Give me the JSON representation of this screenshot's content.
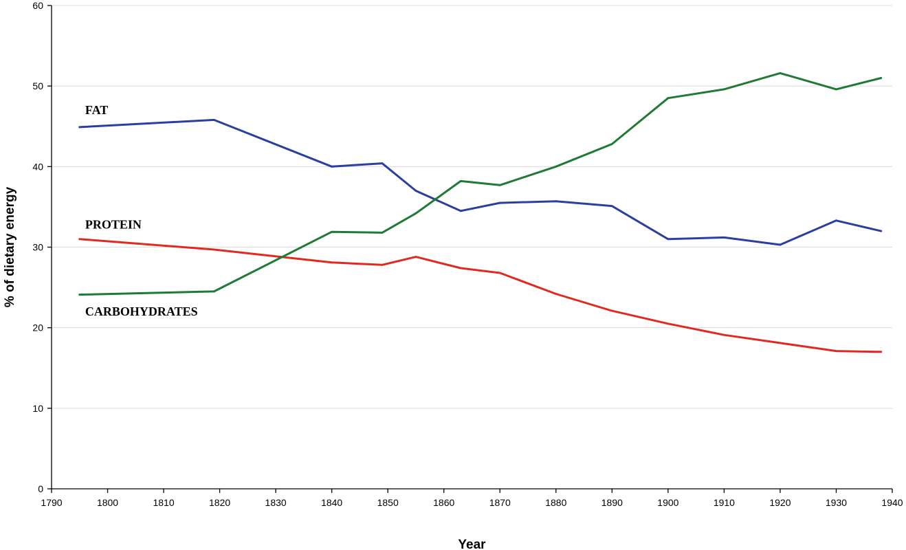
{
  "chart_data": {
    "type": "line",
    "title": "",
    "xlabel": "Year",
    "ylabel": "% of dietary energy",
    "xlim": [
      1790,
      1940
    ],
    "ylim": [
      0,
      60
    ],
    "xticks": [
      1790,
      1800,
      1810,
      1820,
      1830,
      1840,
      1850,
      1860,
      1870,
      1880,
      1890,
      1900,
      1910,
      1920,
      1930,
      1940
    ],
    "yticks": [
      0,
      10,
      20,
      30,
      40,
      50,
      60
    ],
    "grid": "horizontal",
    "legend": "inline labels",
    "series": [
      {
        "name": "FAT",
        "color": "#2b3fa0",
        "x": [
          1795,
          1819,
          1840,
          1849,
          1855,
          1863,
          1870,
          1880,
          1890,
          1900,
          1910,
          1920,
          1930,
          1938
        ],
        "y": [
          44.9,
          45.8,
          40.0,
          40.4,
          37.0,
          34.5,
          35.5,
          35.7,
          35.1,
          31.0,
          31.2,
          30.3,
          33.3,
          32.0
        ]
      },
      {
        "name": "PROTEIN",
        "color": "#e02a20",
        "x": [
          1795,
          1819,
          1840,
          1849,
          1855,
          1863,
          1870,
          1880,
          1890,
          1900,
          1910,
          1920,
          1930,
          1938
        ],
        "y": [
          31.0,
          29.7,
          28.1,
          27.8,
          28.8,
          27.4,
          26.8,
          24.2,
          22.1,
          20.5,
          19.1,
          18.1,
          17.1,
          17.0
        ]
      },
      {
        "name": "CARBOHYDRATES",
        "color": "#1f7a35",
        "x": [
          1795,
          1819,
          1840,
          1849,
          1855,
          1863,
          1870,
          1880,
          1890,
          1900,
          1910,
          1920,
          1930,
          1938
        ],
        "y": [
          24.1,
          24.5,
          31.9,
          31.8,
          34.2,
          38.2,
          37.7,
          40.0,
          42.8,
          48.5,
          49.6,
          51.6,
          49.6,
          51.0
        ]
      }
    ],
    "series_labels": [
      {
        "series": "FAT",
        "text": "FAT",
        "x": 1796,
        "y": 46.5
      },
      {
        "series": "PROTEIN",
        "text": "PROTEIN",
        "x": 1796,
        "y": 32.3
      },
      {
        "series": "CARBOHYDRATES",
        "text": "CARBOHYDRATES",
        "x": 1796,
        "y": 21.5
      }
    ]
  }
}
